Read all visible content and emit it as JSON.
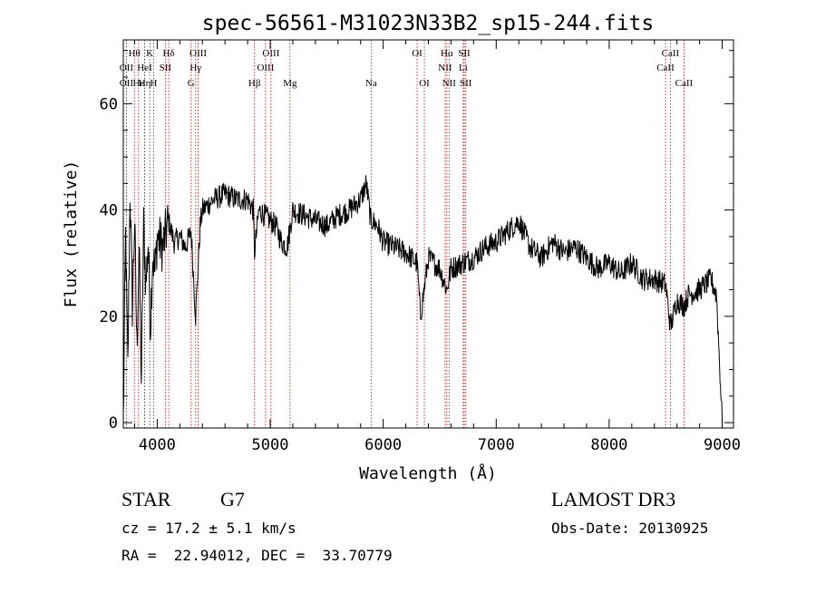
{
  "chart_data": {
    "type": "line",
    "title": "spec-56561-M31023N33B2_sp15-244.fits",
    "xlabel": "Wavelength (Å)",
    "ylabel": "Flux (relative)",
    "xlim": [
      3700,
      9100
    ],
    "ylim": [
      -1,
      72
    ],
    "x_ticks": [
      4000,
      5000,
      6000,
      7000,
      8000,
      9000
    ],
    "y_ticks": [
      0,
      20,
      40,
      60
    ],
    "grid": false,
    "series": [
      {
        "name": "flux",
        "x": [
          3700,
          3720,
          3740,
          3760,
          3780,
          3800,
          3820,
          3840,
          3860,
          3880,
          3900,
          3920,
          3940,
          3960,
          3980,
          4000,
          4050,
          4100,
          4150,
          4200,
          4250,
          4300,
          4340,
          4380,
          4400,
          4500,
          4600,
          4700,
          4800,
          4850,
          4861,
          4900,
          4950,
          5000,
          5050,
          5100,
          5150,
          5200,
          5300,
          5400,
          5500,
          5600,
          5700,
          5800,
          5850,
          5890,
          5900,
          5950,
          6000,
          6100,
          6200,
          6300,
          6330,
          6400,
          6500,
          6563,
          6600,
          6700,
          6800,
          6900,
          7000,
          7100,
          7200,
          7300,
          7400,
          7500,
          7600,
          7700,
          7800,
          7900,
          8000,
          8100,
          8200,
          8300,
          8400,
          8500,
          8542,
          8600,
          8662,
          8700,
          8800,
          8900,
          8950,
          9000
        ],
        "y": [
          0,
          35,
          10,
          44,
          22,
          38,
          14,
          33,
          8,
          37,
          26,
          34,
          18,
          32,
          28,
          35,
          33,
          38,
          34,
          35,
          33,
          36,
          20,
          37,
          40,
          42,
          43,
          42,
          42,
          40,
          32,
          40,
          39,
          38,
          37,
          34,
          33,
          40,
          39,
          38,
          37,
          39,
          40,
          42,
          45,
          38,
          38,
          37,
          34,
          33,
          32,
          30,
          20,
          31,
          29,
          25,
          29,
          30,
          31,
          33,
          34,
          36,
          38,
          33,
          31,
          34,
          32,
          33,
          31,
          29,
          30,
          28,
          30,
          27,
          27,
          26,
          18,
          23,
          22,
          24,
          25,
          27,
          24,
          0
        ]
      }
    ],
    "line_annotations": {
      "row1": [
        {
          "label": "Hθ",
          "x": 3798
        },
        {
          "label": "K",
          "x": 3934
        },
        {
          "label": "Hδ",
          "x": 4102
        },
        {
          "label": "OIII",
          "x": 4363
        },
        {
          "label": "OIII",
          "x": 5007
        },
        {
          "label": "OI",
          "x": 6300
        },
        {
          "label": "Hα",
          "x": 6563
        },
        {
          "label": "SII",
          "x": 6717
        },
        {
          "label": "CaII",
          "x": 8542
        }
      ],
      "row2": [
        {
          "label": "OII",
          "x": 3727
        },
        {
          "label": "HeI",
          "x": 3889
        },
        {
          "label": "SII",
          "x": 4072
        },
        {
          "label": "Hγ",
          "x": 4340
        },
        {
          "label": "OIII",
          "x": 4959
        },
        {
          "label": "NII",
          "x": 6548
        },
        {
          "label": "Li",
          "x": 6708
        },
        {
          "label": "CaII",
          "x": 8498
        }
      ],
      "row3": [
        {
          "label": "OII",
          "x": 3727
        },
        {
          "label": "Hε",
          "x": 3835
        },
        {
          "label": "Hη",
          "x": 3889
        },
        {
          "label": "H",
          "x": 3969
        },
        {
          "label": "G",
          "x": 4300
        },
        {
          "label": "Hβ",
          "x": 4861
        },
        {
          "label": "Mg",
          "x": 5175
        },
        {
          "label": "Na",
          "x": 5893
        },
        {
          "label": "OI",
          "x": 6364
        },
        {
          "label": "NII",
          "x": 6583
        },
        {
          "label": "SII",
          "x": 6731
        },
        {
          "label": "CaII",
          "x": 8662
        }
      ]
    },
    "line_marker_color": "#cc0000"
  },
  "info": {
    "object_type": "STAR",
    "subclass": "G7",
    "survey": "LAMOST DR3",
    "redshift_text": "cz = 17.2 ± 5.1 km/s",
    "obs_date_text": "Obs-Date: 20130925",
    "coords_text": "RA =  22.94012, DEC =  33.70779"
  }
}
